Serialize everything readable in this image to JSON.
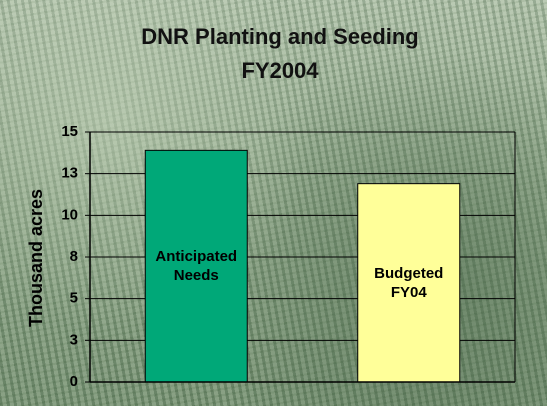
{
  "chart_data": {
    "type": "bar",
    "title": "DNR Planting and Seeding",
    "subtitle": "FY2004",
    "y_label": "Thousand acres",
    "categories": [
      "Anticipated Needs",
      "Budgeted FY04"
    ],
    "values": [
      13.9,
      11.9
    ],
    "colors": [
      "#00a878",
      "#ffff99"
    ],
    "ylim": [
      0,
      15
    ],
    "yticks": [
      0,
      {
        "value": 2.5,
        "label": "3"
      },
      5,
      {
        "value": 7.5,
        "label": "8"
      },
      10,
      {
        "value": 12.5,
        "label": "13"
      },
      15
    ],
    "grid": true
  }
}
